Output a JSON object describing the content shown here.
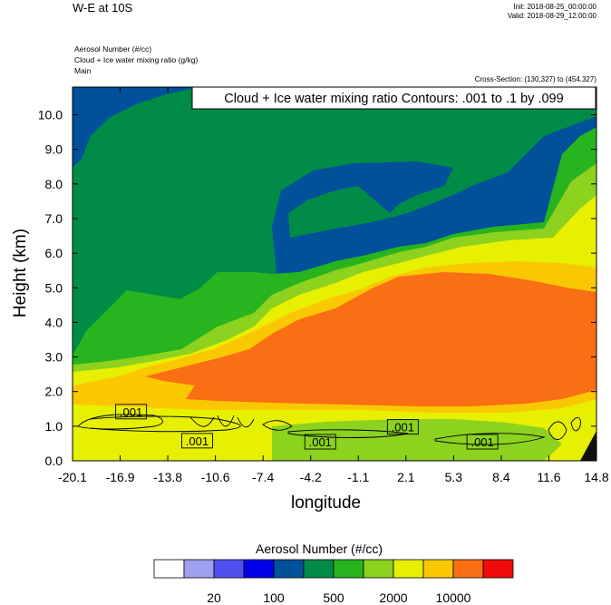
{
  "header": {
    "title": "W-E at 10S",
    "init": "Init: 2018-08-25_00:00:00",
    "valid": "Valid: 2018-08-29_12:00:00",
    "fields": [
      "Aerosol Number    (#/cc)",
      "Cloud + Ice water mixing ratio    (g/kg)",
      "Main"
    ],
    "cross_section": "Cross-Section: (130,327) to (454,327)"
  },
  "chart_data": {
    "type": "heatmap",
    "xlabel": "longitude",
    "ylabel": "Height (km)",
    "x_ticks": [
      "-20.1",
      "-16.9",
      "-13.8",
      "-10.6",
      "-7.4",
      "-4.2",
      "-1.1",
      "2.1",
      "5.3",
      "8.4",
      "11.6",
      "14.8"
    ],
    "y_ticks": [
      "0.0",
      "1.0",
      "2.0",
      "3.0",
      "4.0",
      "5.0",
      "6.0",
      "7.0",
      "8.0",
      "9.0",
      "10.0"
    ],
    "xlim": [
      -20.1,
      14.8
    ],
    "ylim": [
      0,
      10.8
    ],
    "contour_title": "Cloud + Ice water mixing ratio Contours: .001 to .1 by .099",
    "contour_labels": [
      {
        "text": ".001",
        "x": -16.2,
        "y": 1.42
      },
      {
        "text": ".001",
        "x": -11.8,
        "y": 0.58
      },
      {
        "text": ".001",
        "x": -3.6,
        "y": 0.55
      },
      {
        "text": ".001",
        "x": 1.9,
        "y": 0.98
      },
      {
        "text": ".001",
        "x": 7.2,
        "y": 0.55
      }
    ],
    "colorbar": {
      "title": "Aerosol Number  (#/cc)",
      "colors": [
        "#ffffff",
        "#a0a0f0",
        "#5050f0",
        "#0000e8",
        "#00509a",
        "#008c46",
        "#28b41e",
        "#8cd21e",
        "#e6f000",
        "#fac800",
        "#fa6e14",
        "#f00a0a"
      ],
      "labels": [
        "20",
        "100",
        "500",
        "2000",
        "10000"
      ]
    },
    "regions": [
      {
        "name": "upper-blue",
        "color": "#00509a",
        "level": "2000"
      },
      {
        "name": "mid-green",
        "color": "#008c46",
        "level": "500"
      },
      {
        "name": "light-green",
        "color": "#28b41e"
      },
      {
        "name": "yellow-green",
        "color": "#8cd21e"
      },
      {
        "name": "yellow",
        "color": "#e6f000"
      },
      {
        "name": "gold",
        "color": "#fac800"
      },
      {
        "name": "orange",
        "color": "#fa6e14"
      }
    ]
  }
}
